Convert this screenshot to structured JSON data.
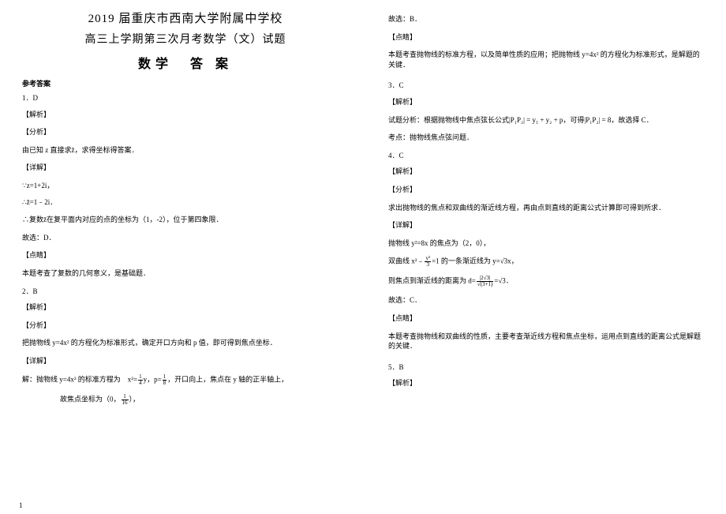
{
  "header": {
    "line1": "2019 届重庆市西南大学附属中学校",
    "line2": "高三上学期第三次月考数学（文）试题",
    "line3": "数学　答 案"
  },
  "left": {
    "ref_label": "参考答案",
    "q1_num": "1．D",
    "jiexi": "【解析】",
    "fenxi": "【分析】",
    "q1_fenxi_body": "由已知 z 直接求z̄，求得坐标得答案．",
    "xiangjie": "【详解】",
    "q1_step1": "∵z=1+2i，",
    "q1_step2": "∴z̄=1﹣2i．",
    "q1_step3": "∴复数z̄在复平面内对应的点的坐标为（1，-2），位于第四象限．",
    "q1_choice": "故选：D．",
    "dianjing": "【点睛】",
    "q1_dianjing_body": "本题考查了复数的几何意义，是基础题．",
    "q2_num": "2．B",
    "q2_fenxi_body": "把抛物线 y=4x² 的方程化为标准形式，确定开口方向和 p 值，即可得到焦点坐标．",
    "q2_step1_pre": "解：抛物线 y=4x² 的标准方程为　x²=",
    "q2_step1_frac_num": "1",
    "q2_step1_frac_den": "4",
    "q2_step1_mid": "y，p=",
    "q2_step1_frac2_num": "1",
    "q2_step1_frac2_den": "8",
    "q2_step1_post": "，开口向上，焦点在 y 轴的正半轴上，",
    "q2_step2_pre": "故焦点坐标为（0，",
    "q2_step2_frac_num": "1",
    "q2_step2_frac_den": "16",
    "q2_step2_post": "），",
    "page_num": "1"
  },
  "right": {
    "r1": "故选：B．",
    "dianjing": "【点睛】",
    "r2": "本题考查抛物线的标准方程，以及简单性质的应用；把抛物线 y=4x² 的方程化为标准形式，是解题的关键．",
    "q3_num": "3．C",
    "jiexi": "【解析】",
    "q3_body_pre": "试题分析：根据抛物线中焦点弦长公式|P₁P₂| = y₁ + y₂ + p，可得|P₁P₂| = 8，故选择 C．",
    "q3_kaodian": "考点：抛物线焦点弦问题．",
    "q4_num": "4．C",
    "fenxi": "【分析】",
    "q4_fenxi_body": "求出抛物线的焦点和双曲线的渐近线方程，再由点到直线的距离公式计算即可得到所求．",
    "xiangjie": "【详解】",
    "q4_step1": "抛物线 y²=8x 的焦点为（2，0），",
    "q4_step2_pre": "双曲线 x²﹣",
    "q4_step2_frac_num": "y²",
    "q4_step2_frac_den": "3",
    "q4_step2_mid": "=1 的一条渐近线为 y=",
    "q4_step2_sqrt": "√3",
    "q4_step2_post": "x，",
    "q4_step3_pre": "则焦点到渐近线的距离为 d=",
    "q4_step3_num": "|2√3|",
    "q4_step3_den": "√(3+1)",
    "q4_step3_mid": "=",
    "q4_step3_result": "√3",
    "q4_step3_post": "．",
    "q4_choice": "故选：C．",
    "q4_dianjing_body": "本题考查抛物线和双曲线的性质，主要考查渐近线方程和焦点坐标，运用点到直线的距离公式是解题的关键．",
    "q5_num": "5．B"
  }
}
